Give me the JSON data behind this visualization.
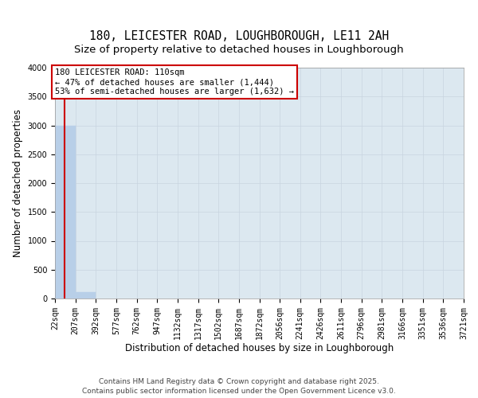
{
  "title_line1": "180, LEICESTER ROAD, LOUGHBOROUGH, LE11 2AH",
  "title_line2": "Size of property relative to detached houses in Loughborough",
  "xlabel": "Distribution of detached houses by size in Loughborough",
  "ylabel": "Number of detached properties",
  "bar_color": "#b8cfe8",
  "bar_edge_color": "#b8cfe8",
  "bin_edges": [
    22,
    207,
    392,
    577,
    762,
    947,
    1132,
    1317,
    1502,
    1687,
    1872,
    2056,
    2241,
    2426,
    2611,
    2796,
    2981,
    3166,
    3351,
    3536,
    3721
  ],
  "bar_heights": [
    3000,
    110,
    0,
    0,
    0,
    0,
    0,
    0,
    0,
    0,
    0,
    0,
    0,
    0,
    0,
    0,
    0,
    0,
    0,
    0
  ],
  "property_value": 110,
  "property_line_color": "#cc0000",
  "annotation_line1": "180 LEICESTER ROAD: 110sqm",
  "annotation_line2": "← 47% of detached houses are smaller (1,444)",
  "annotation_line3": "53% of semi-detached houses are larger (1,632) →",
  "annotation_box_color": "#cc0000",
  "ylim": [
    0,
    4000
  ],
  "yticks": [
    0,
    500,
    1000,
    1500,
    2000,
    2500,
    3000,
    3500,
    4000
  ],
  "grid_color": "#c8d4e0",
  "bg_color": "#dce8f0",
  "footer_line1": "Contains HM Land Registry data © Crown copyright and database right 2025.",
  "footer_line2": "Contains public sector information licensed under the Open Government Licence v3.0.",
  "title_fontsize": 10.5,
  "subtitle_fontsize": 9.5,
  "axis_label_fontsize": 8.5,
  "tick_fontsize": 7,
  "footer_fontsize": 6.5,
  "annotation_fontsize": 7.5
}
